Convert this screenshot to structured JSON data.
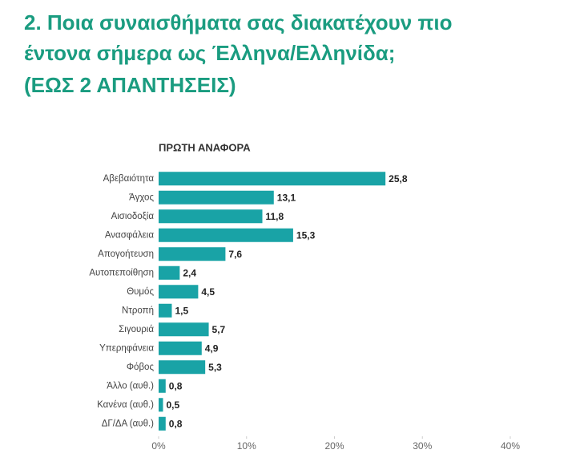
{
  "chart_data": {
    "type": "hbar",
    "title": [
      "2. Ποια συναισθήματα σας διακατέχουν πιο",
      "έντονα σήμερα ως Έλληνα/Ελληνίδα;"
    ],
    "subtitle": "(ΕΩΣ 2 ΑΠΑΝΤΗΣΕΙΣ)",
    "panel_title": "ΠΡΩΤΗ ΑΝΑΦΟΡΑ",
    "categories": [
      "Αβεβαιότητα",
      "Άγχος",
      "Αισιοδοξία",
      "Ανασφάλεια",
      "Απογοήτευση",
      "Αυτοπεποίθηση",
      "Θυμός",
      "Ντροπή",
      "Σιγουριά",
      "Υπερηφάνεια",
      "Φόβος",
      "Άλλο (αυθ.)",
      "Κανένα (αυθ.)",
      "ΔΓ/ΔΑ (αυθ.)"
    ],
    "values": [
      25.8,
      13.1,
      11.8,
      15.3,
      7.6,
      2.4,
      4.5,
      1.5,
      5.7,
      4.9,
      5.3,
      0.8,
      0.5,
      0.8
    ],
    "value_labels": [
      "25,8",
      "13,1",
      "11,8",
      "15,3",
      "7,6",
      "2,4",
      "4,5",
      "1,5",
      "5,7",
      "4,9",
      "5,3",
      "0,8",
      "0,5",
      "0,8"
    ],
    "color": "#19a3a6",
    "xlim": [
      0,
      40
    ],
    "xticks": [
      {
        "value": 0,
        "label": "0%"
      },
      {
        "value": 10,
        "label": "10%"
      },
      {
        "value": 20,
        "label": "20%"
      },
      {
        "value": 30,
        "label": "30%"
      },
      {
        "value": 40,
        "label": "40%"
      }
    ]
  }
}
